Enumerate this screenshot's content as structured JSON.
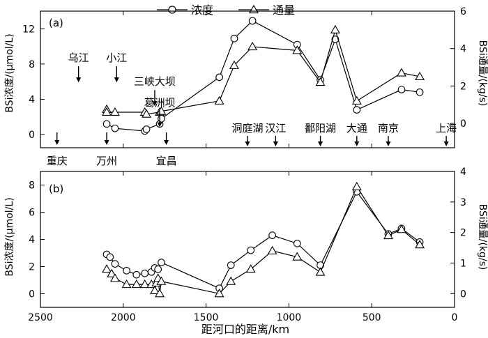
{
  "legend": {
    "series1": "浓度",
    "series2": "通量"
  },
  "chart_data": [
    {
      "panel_label": "(a)",
      "type": "line",
      "xlabel": "",
      "x_reversed": true,
      "xlim": [
        2500,
        0
      ],
      "x_ticks": [
        2500,
        2000,
        1500,
        1000,
        500,
        0
      ],
      "x_tick_labels_shown": false,
      "ylabel_left": "BSi浓度/(μmol/L)",
      "ylim_left": [
        -1.5,
        14
      ],
      "yticks_left": [
        0,
        4,
        8,
        12
      ],
      "ylabel_right": "BSi通量/(kg/s)",
      "ylim_right": [
        -1.3,
        6
      ],
      "yticks_right": [
        0,
        2,
        4,
        6
      ],
      "series": [
        {
          "name": "浓度",
          "marker": "circle",
          "axis": "left",
          "points": [
            [
              2100,
              1.2
            ],
            [
              2050,
              0.7
            ],
            [
              1870,
              0.4
            ],
            [
              1860,
              0.6
            ],
            [
              1780,
              1.2
            ],
            [
              1770,
              1.8
            ],
            [
              1420,
              6.5
            ],
            [
              1330,
              10.9
            ],
            [
              1220,
              12.9
            ],
            [
              950,
              10.2
            ],
            [
              810,
              6.2
            ],
            [
              720,
              10.8
            ],
            [
              590,
              2.8
            ],
            [
              320,
              5.1
            ],
            [
              210,
              4.8
            ]
          ]
        },
        {
          "name": "通量",
          "marker": "triangle",
          "axis": "right",
          "points": [
            [
              2100,
              0.75
            ],
            [
              2100,
              0.6
            ],
            [
              2050,
              0.6
            ],
            [
              1870,
              0.6
            ],
            [
              1860,
              0.5
            ],
            [
              1780,
              0.6
            ],
            [
              1770,
              0.65
            ],
            [
              1420,
              1.2
            ],
            [
              1330,
              3.1
            ],
            [
              1220,
              4.1
            ],
            [
              950,
              3.9
            ],
            [
              810,
              2.2
            ],
            [
              720,
              5.0
            ],
            [
              590,
              1.2
            ],
            [
              320,
              2.7
            ],
            [
              210,
              2.5
            ]
          ]
        }
      ],
      "annotations_above": [
        {
          "text": "乌江",
          "x": 2270,
          "y": 8.3
        },
        {
          "text": "小江",
          "x": 2040,
          "y": 8.3
        },
        {
          "text": "三峡大坝",
          "x": 1810,
          "y": 5.6
        },
        {
          "text": "葛洲坝",
          "x": 1780,
          "y": 3.2
        }
      ],
      "annotations_below": [
        {
          "text": "重庆",
          "x": 2400
        },
        {
          "text": "万州",
          "x": 2100
        },
        {
          "text": "宜昌",
          "x": 1740
        }
      ],
      "annotations_mid": [
        {
          "text": "洞庭湖",
          "x": 1250
        },
        {
          "text": "汉江",
          "x": 1080
        },
        {
          "text": "鄱阳湖",
          "x": 810
        },
        {
          "text": "大通",
          "x": 590
        },
        {
          "text": "南京",
          "x": 400
        },
        {
          "text": "上海",
          "x": 50
        }
      ]
    },
    {
      "panel_label": "(b)",
      "type": "line",
      "xlabel": "距河口的距离/km",
      "x_reversed": true,
      "xlim": [
        2500,
        0
      ],
      "x_ticks": [
        2500,
        2000,
        1500,
        1000,
        500,
        0
      ],
      "x_tick_labels": [
        "2500",
        "2000",
        "1500",
        "1000",
        "500",
        "0"
      ],
      "ylabel_left": "BSi浓度/(μmol/L)",
      "ylim_left": [
        -1,
        9
      ],
      "yticks_left": [
        0,
        2,
        4,
        6,
        8
      ],
      "ylabel_right": "BSi通量/(kg/s)",
      "ylim_right": [
        -0.45,
        4
      ],
      "yticks_right": [
        0,
        1,
        2,
        3,
        4
      ],
      "series": [
        {
          "name": "浓度",
          "marker": "circle",
          "axis": "left",
          "points": [
            [
              2100,
              2.9
            ],
            [
              2080,
              2.7
            ],
            [
              2050,
              2.2
            ],
            [
              1980,
              1.7
            ],
            [
              1920,
              1.4
            ],
            [
              1870,
              1.5
            ],
            [
              1830,
              1.6
            ],
            [
              1810,
              1.9
            ],
            [
              1790,
              1.8
            ],
            [
              1770,
              2.3
            ],
            [
              1420,
              0.4
            ],
            [
              1350,
              2.1
            ],
            [
              1230,
              3.2
            ],
            [
              1100,
              4.3
            ],
            [
              950,
              3.7
            ],
            [
              810,
              2.1
            ],
            [
              590,
              7.5
            ],
            [
              400,
              4.4
            ],
            [
              320,
              4.8
            ],
            [
              210,
              3.8
            ]
          ]
        },
        {
          "name": "通量",
          "marker": "triangle",
          "axis": "right",
          "points": [
            [
              2100,
              0.8
            ],
            [
              2070,
              0.65
            ],
            [
              2050,
              0.5
            ],
            [
              1980,
              0.3
            ],
            [
              1920,
              0.3
            ],
            [
              1870,
              0.3
            ],
            [
              1830,
              0.3
            ],
            [
              1810,
              0.1
            ],
            [
              1800,
              0.35
            ],
            [
              1790,
              0.5
            ],
            [
              1780,
              0.0
            ],
            [
              1770,
              0.4
            ],
            [
              1420,
              0.0
            ],
            [
              1350,
              0.4
            ],
            [
              1230,
              0.8
            ],
            [
              1100,
              1.4
            ],
            [
              950,
              1.2
            ],
            [
              810,
              0.7
            ],
            [
              590,
              3.5
            ],
            [
              400,
              1.9
            ],
            [
              320,
              2.1
            ],
            [
              210,
              1.6
            ]
          ]
        }
      ]
    }
  ]
}
